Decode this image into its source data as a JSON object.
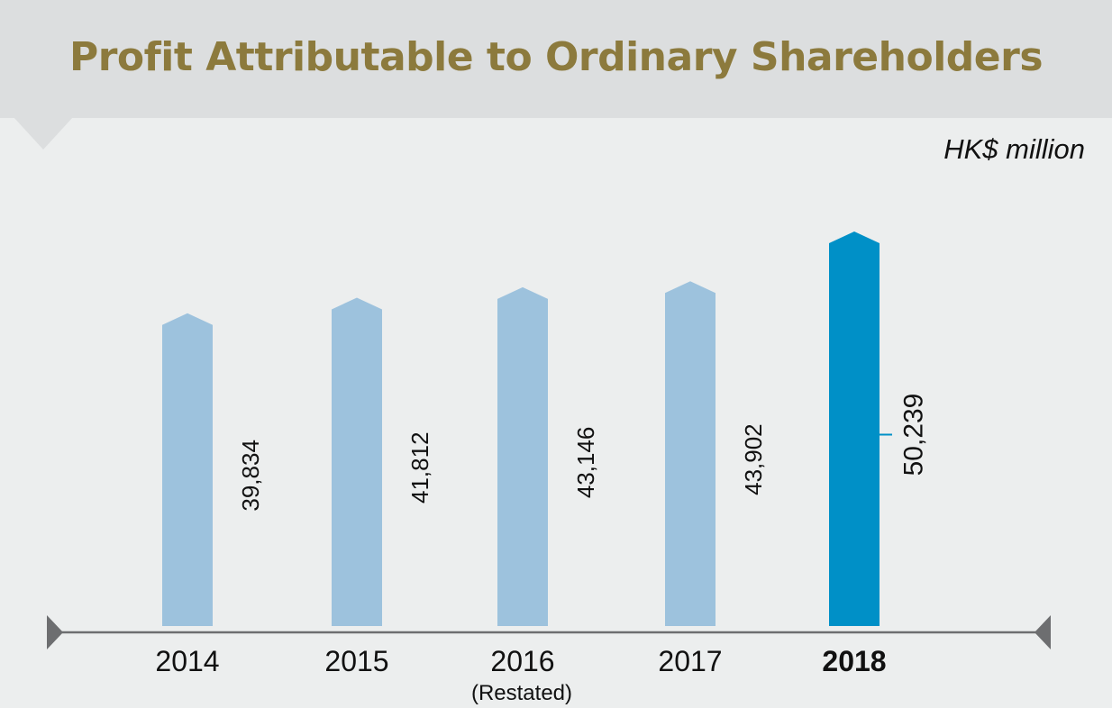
{
  "header": {
    "title": "Profit Attributable to Ordinary Shareholders"
  },
  "unit": "HK$ million",
  "colors": {
    "bar": "#9dc2dd",
    "bar_highlight": "#0090c7",
    "title": "#8c7a3d",
    "axis": "#6d6e70"
  },
  "chart_data": {
    "type": "bar",
    "title": "Profit Attributable to Ordinary Shareholders",
    "ylabel": "HK$ million",
    "xlabel": "",
    "categories": [
      "2014",
      "2015",
      "2016",
      "2017",
      "2018"
    ],
    "category_notes": [
      "",
      "",
      "(Restated)",
      "",
      ""
    ],
    "values": [
      39834,
      41812,
      43146,
      43902,
      50239
    ],
    "value_labels": [
      "39,834",
      "41,812",
      "43,146",
      "43,902",
      "50,239"
    ],
    "highlight": "2018",
    "ylim": [
      0,
      52000
    ],
    "grid": false,
    "legend": "none"
  }
}
